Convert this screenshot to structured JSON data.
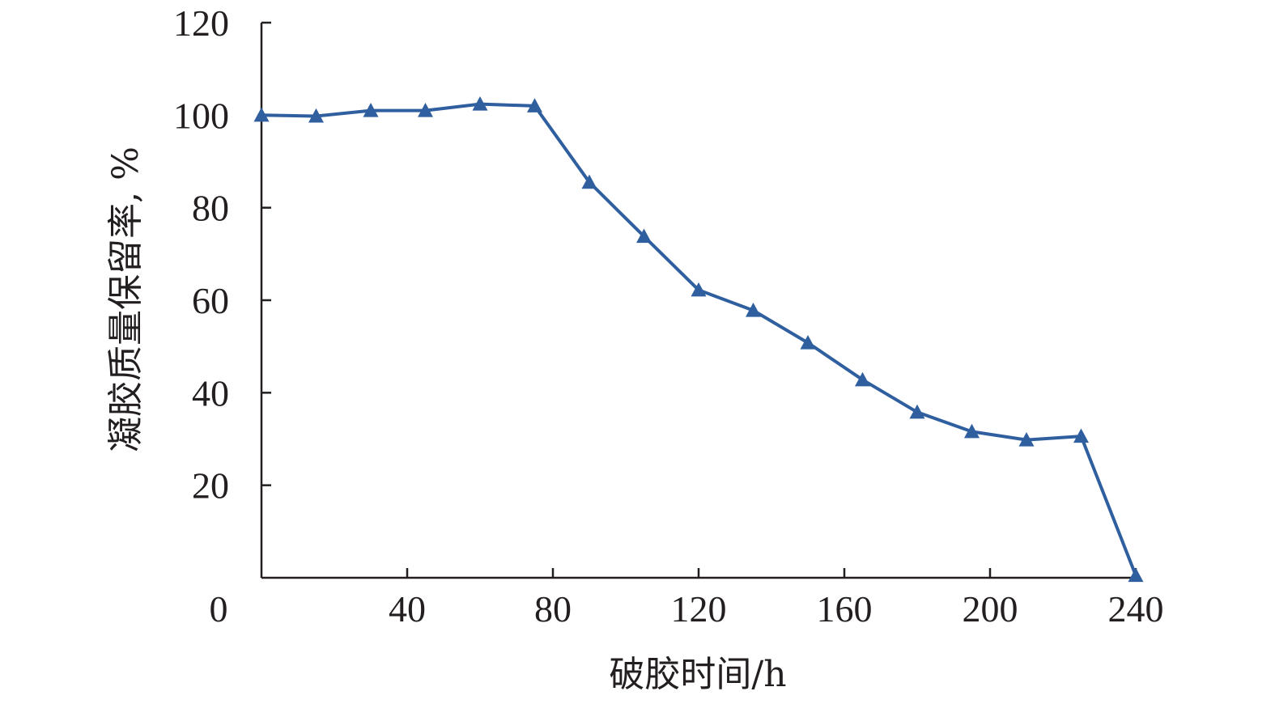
{
  "chart_data": {
    "type": "line",
    "xlabel": "破胶时间/h",
    "ylabel": "凝胶质量保留率, %",
    "xlim": [
      0,
      240
    ],
    "ylim": [
      0,
      120
    ],
    "x_ticks": [
      "0",
      "40",
      "80",
      "120",
      "160",
      "200",
      "240"
    ],
    "y_ticks": [
      "20",
      "40",
      "60",
      "80",
      "100",
      "120"
    ],
    "grid": false,
    "marker": "triangle",
    "color": "#2f5f9f",
    "series": [
      {
        "x": [
          0,
          15,
          30,
          45,
          60,
          75,
          90,
          105,
          120,
          135,
          150,
          165,
          180,
          195,
          210,
          225,
          240
        ],
        "values": [
          100,
          99.8,
          101,
          101,
          102.4,
          102,
          85.5,
          73.8,
          62.2,
          57.8,
          50.8,
          42.8,
          35.8,
          31.6,
          29.8,
          30.6,
          0.5
        ]
      }
    ]
  }
}
